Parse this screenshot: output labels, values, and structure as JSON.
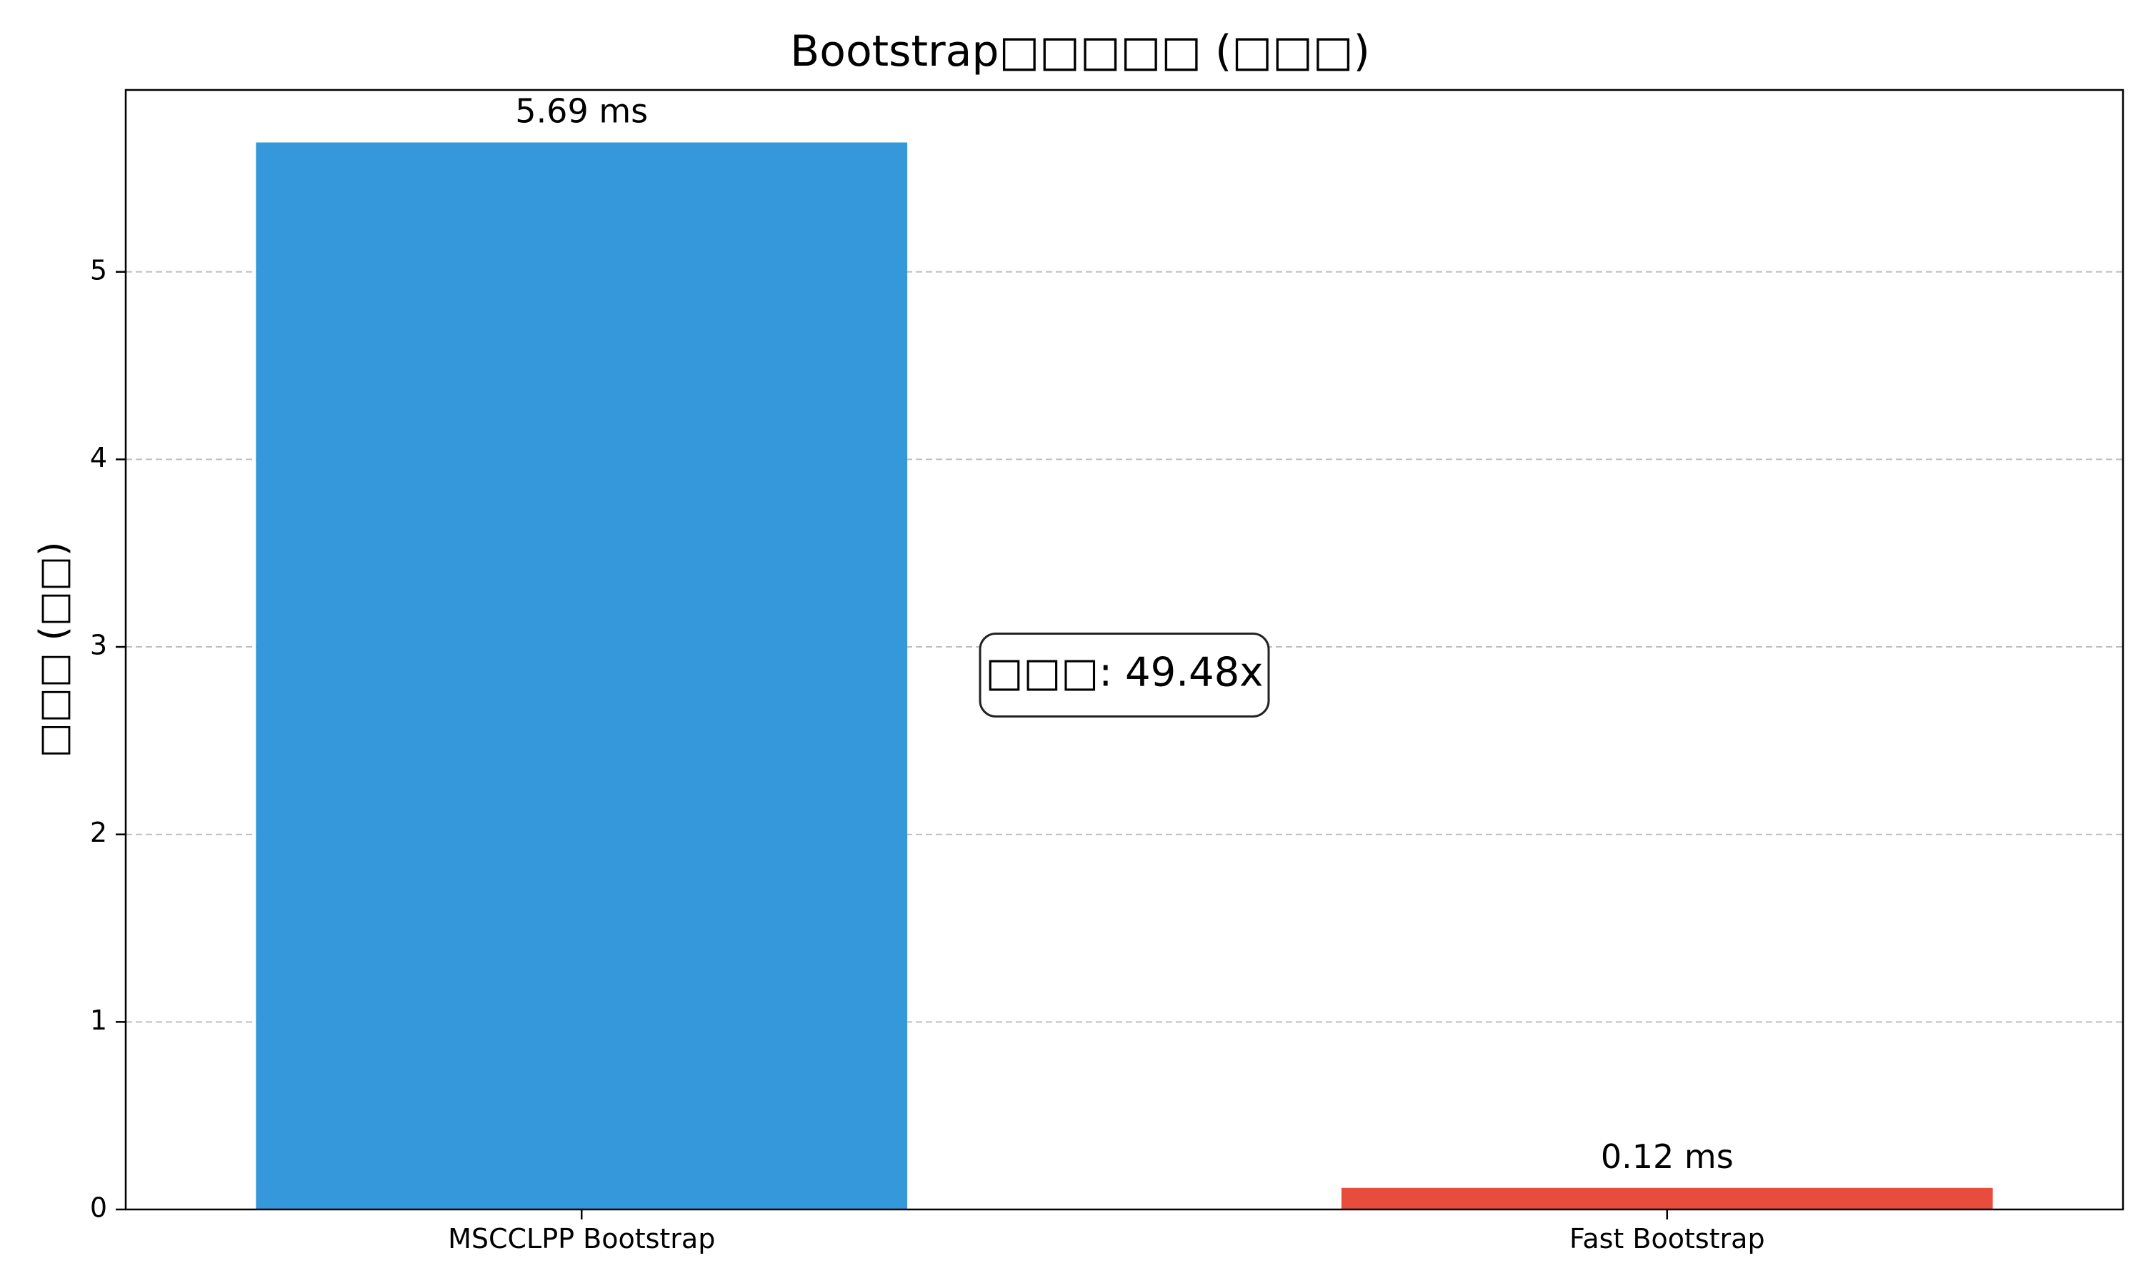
{
  "chart_data": {
    "type": "bar",
    "title": "Bootstrap□□□□□ (□□□)",
    "xlabel": "",
    "ylabel": "□□□ (□□)",
    "categories": [
      "MSCCLPP Bootstrap",
      "Fast Bootstrap"
    ],
    "values": [
      5.69,
      0.115
    ],
    "value_labels": [
      "5.69 ms",
      "0.12 ms"
    ],
    "colors": [
      "#3498db",
      "#e74c3c"
    ],
    "ylim": [
      0,
      5.97
    ],
    "yticks": [
      0,
      1,
      2,
      3,
      4,
      5
    ],
    "grid": "y-dashed",
    "annotation": "□□□: 49.48x"
  }
}
